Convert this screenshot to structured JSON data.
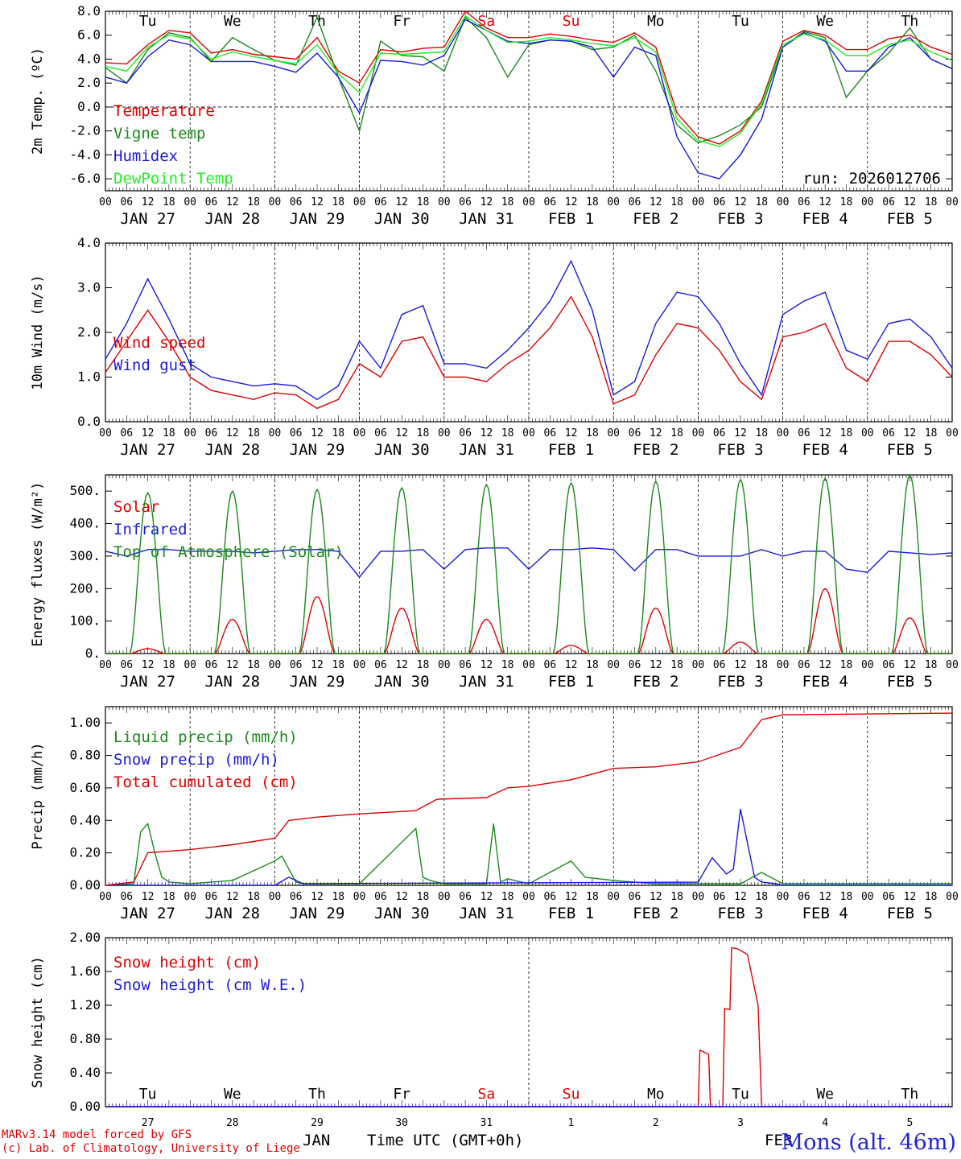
{
  "run_label": "run: 2026012706",
  "footer": {
    "line1": "MARv3.14 model forced by GFS",
    "line2": "(c) Lab. of Climatology, University of Liege"
  },
  "station": "Mons (alt. 46m)",
  "x_axis": {
    "month_label": "JAN",
    "month_label2": "FEB",
    "title": "Time UTC (GMT+0h)",
    "hour_ticks": [
      "00",
      "06",
      "12",
      "18"
    ],
    "dates": [
      "JAN 27",
      "JAN 28",
      "JAN 29",
      "JAN 30",
      "JAN 31",
      "FEB  1",
      "FEB  2",
      "FEB  3",
      "FEB  4",
      "FEB  5"
    ],
    "day_numbers": [
      "27",
      "28",
      "29",
      "30",
      "31",
      "1",
      "2",
      "3",
      "4",
      "5"
    ],
    "days": [
      {
        "label": "Tu",
        "color": "#000000"
      },
      {
        "label": "We",
        "color": "#000000"
      },
      {
        "label": "Th",
        "color": "#000000"
      },
      {
        "label": "Fr",
        "color": "#000000"
      },
      {
        "label": "Sa",
        "color": "#e00000"
      },
      {
        "label": "Su",
        "color": "#e00000"
      },
      {
        "label": "Mo",
        "color": "#000000"
      },
      {
        "label": "Tu",
        "color": "#000000"
      },
      {
        "label": "We",
        "color": "#000000"
      },
      {
        "label": "Th",
        "color": "#000000"
      }
    ]
  },
  "chart_data": [
    {
      "type": "line",
      "ylabel": "2m Temp. (ºC)",
      "ylim": [
        -7,
        8
      ],
      "yticks": [
        -6,
        -4,
        -2,
        0,
        2,
        4,
        6,
        8
      ],
      "ytick_labels": [
        "-6.0",
        "-4.0",
        "-2.0",
        "0.0",
        "2.0",
        "4.0",
        "6.0",
        "8.0"
      ],
      "zero_line": true,
      "legend_placement": "top-left",
      "x_hours": [
        0,
        6,
        12,
        18,
        24,
        30,
        36,
        42,
        48,
        54,
        60,
        66,
        72,
        78,
        84,
        90,
        96,
        102,
        108,
        114,
        120,
        126,
        132,
        138,
        144,
        150,
        156,
        162,
        168,
        174,
        180,
        186,
        192,
        198,
        204,
        210,
        216,
        222,
        228,
        234,
        240
      ],
      "series": [
        {
          "name": "Temperature",
          "color": "#e00000",
          "values": [
            3.7,
            3.6,
            5.2,
            6.4,
            6.2,
            4.5,
            4.8,
            4.4,
            4.2,
            4.0,
            5.8,
            3.0,
            2.0,
            4.8,
            4.6,
            4.9,
            5.0,
            8.0,
            6.6,
            5.8,
            5.8,
            6.1,
            5.9,
            5.6,
            5.4,
            6.2,
            5.0,
            -0.5,
            -2.5,
            -3.1,
            -2.0,
            0.5,
            5.5,
            6.4,
            6.0,
            4.8,
            4.8,
            5.7,
            6.0,
            5.0,
            4.4
          ]
        },
        {
          "name": "Vigne temp",
          "color": "#1a8a1a",
          "values": [
            3.3,
            2.0,
            4.8,
            6.2,
            5.8,
            3.8,
            5.8,
            4.8,
            3.9,
            3.5,
            7.5,
            2.5,
            -2.0,
            5.5,
            4.3,
            4.2,
            3.0,
            7.5,
            5.8,
            2.5,
            5.2,
            5.6,
            5.5,
            4.8,
            5.0,
            6.0,
            3.0,
            -1.5,
            -3.0,
            -2.4,
            -1.5,
            0.0,
            5.0,
            6.3,
            5.8,
            0.8,
            3.0,
            4.5,
            6.6,
            4.0,
            3.2
          ]
        },
        {
          "name": "Humidex",
          "color": "#1a1ae0",
          "values": [
            2.5,
            2.0,
            4.2,
            5.6,
            5.2,
            3.8,
            3.8,
            3.8,
            3.4,
            2.9,
            4.5,
            2.5,
            -0.5,
            3.9,
            3.8,
            3.5,
            4.3,
            7.3,
            6.4,
            5.5,
            5.3,
            5.6,
            5.5,
            5.0,
            2.5,
            5.0,
            4.3,
            -2.5,
            -5.5,
            -6.0,
            -4.0,
            -1.0,
            5.0,
            6.2,
            5.5,
            3.0,
            3.0,
            5.0,
            5.8,
            4.0,
            3.2
          ]
        },
        {
          "name": "DewPoint Temp",
          "color": "#22ee22",
          "values": [
            3.4,
            3.0,
            5.0,
            6.0,
            5.7,
            4.0,
            4.6,
            4.2,
            3.9,
            3.6,
            5.2,
            2.8,
            1.2,
            4.5,
            4.4,
            4.5,
            4.6,
            7.6,
            6.4,
            5.4,
            5.5,
            5.8,
            5.6,
            5.3,
            5.1,
            5.8,
            4.6,
            -1.0,
            -2.8,
            -3.3,
            -2.2,
            0.3,
            5.2,
            6.1,
            5.6,
            4.3,
            4.3,
            5.2,
            5.6,
            4.6,
            3.9
          ]
        }
      ]
    },
    {
      "type": "line",
      "ylabel": "10m Wind (m/s)",
      "ylim": [
        0,
        4
      ],
      "yticks": [
        0,
        1,
        2,
        3,
        4
      ],
      "ytick_labels": [
        "0.0",
        "1.0",
        "2.0",
        "3.0",
        "4.0"
      ],
      "legend_placement": "top-left",
      "x_hours": [
        0,
        6,
        12,
        18,
        24,
        30,
        36,
        42,
        48,
        54,
        60,
        66,
        72,
        78,
        84,
        90,
        96,
        102,
        108,
        114,
        120,
        126,
        132,
        138,
        144,
        150,
        156,
        162,
        168,
        174,
        180,
        186,
        192,
        198,
        204,
        210,
        216,
        222,
        228,
        234,
        240
      ],
      "series": [
        {
          "name": "Wind speed",
          "color": "#e00000",
          "values": [
            1.1,
            1.8,
            2.5,
            1.8,
            1.0,
            0.7,
            0.6,
            0.5,
            0.65,
            0.6,
            0.3,
            0.5,
            1.3,
            1.0,
            1.8,
            1.9,
            1.0,
            1.0,
            0.9,
            1.3,
            1.6,
            2.1,
            2.8,
            1.9,
            0.4,
            0.6,
            1.5,
            2.2,
            2.1,
            1.6,
            0.9,
            0.5,
            1.9,
            2.0,
            2.2,
            1.2,
            0.9,
            1.8,
            1.8,
            1.5,
            1.0
          ]
        },
        {
          "name": "Wind gust",
          "color": "#1a1ae0",
          "values": [
            1.4,
            2.2,
            3.2,
            2.3,
            1.3,
            1.0,
            0.9,
            0.8,
            0.85,
            0.8,
            0.5,
            0.8,
            1.8,
            1.2,
            2.4,
            2.6,
            1.3,
            1.3,
            1.2,
            1.6,
            2.1,
            2.7,
            3.6,
            2.5,
            0.6,
            0.9,
            2.2,
            2.9,
            2.8,
            2.2,
            1.3,
            0.6,
            2.4,
            2.7,
            2.9,
            1.6,
            1.4,
            2.2,
            2.3,
            1.9,
            1.2
          ]
        }
      ]
    },
    {
      "type": "line",
      "ylabel": "Energy fluxes (W/m²)",
      "ylim": [
        0,
        550
      ],
      "yticks": [
        0,
        100,
        200,
        300,
        400,
        500
      ],
      "ytick_labels": [
        "0.",
        "100.",
        "200.",
        "300.",
        "400.",
        "500."
      ],
      "legend_placement": "top-left",
      "series": [
        {
          "name": "Solar",
          "color": "#e00000",
          "peaks": [
            15,
            105,
            175,
            140,
            105,
            25,
            140,
            35,
            200,
            110
          ]
        },
        {
          "name": "Infrared",
          "color": "#1a1ae0",
          "x_hours": [
            0,
            6,
            12,
            18,
            24,
            30,
            36,
            42,
            48,
            54,
            60,
            66,
            72,
            78,
            84,
            90,
            96,
            102,
            108,
            114,
            120,
            126,
            132,
            138,
            144,
            150,
            156,
            162,
            168,
            174,
            180,
            186,
            192,
            198,
            204,
            210,
            216,
            222,
            228,
            234,
            240
          ],
          "values": [
            315,
            300,
            320,
            320,
            315,
            315,
            315,
            310,
            315,
            320,
            320,
            315,
            235,
            315,
            315,
            320,
            260,
            320,
            325,
            325,
            260,
            320,
            320,
            325,
            320,
            255,
            320,
            320,
            300,
            300,
            300,
            320,
            300,
            315,
            315,
            260,
            250,
            315,
            310,
            305,
            310
          ]
        },
        {
          "name": "Top of Atmosphere (Solar)",
          "color": "#1a8a1a",
          "peaks": [
            495,
            500,
            505,
            510,
            520,
            525,
            530,
            535,
            540,
            550
          ]
        }
      ]
    },
    {
      "type": "line",
      "ylabel": "Precip (mm/h)",
      "ylim": [
        0,
        1.1
      ],
      "yticks": [
        0,
        0.2,
        0.4,
        0.6,
        0.8,
        1.0
      ],
      "ytick_labels": [
        "0.00",
        "0.20",
        "0.40",
        "0.60",
        "0.80",
        "1.00"
      ],
      "legend_placement": "top-left",
      "series": [
        {
          "name": "Liquid precip (mm/h)",
          "color": "#1a8a1a",
          "x_hours": [
            0,
            8,
            10,
            12,
            14,
            16,
            18,
            24,
            36,
            48,
            50,
            52,
            54,
            56,
            60,
            72,
            88,
            90,
            92,
            96,
            108,
            110,
            112,
            114,
            120,
            132,
            136,
            144,
            156,
            180,
            186,
            192,
            240
          ],
          "values": [
            0,
            0.01,
            0.33,
            0.38,
            0.2,
            0.05,
            0.02,
            0.01,
            0.03,
            0.15,
            0.18,
            0.1,
            0.02,
            0.01,
            0.01,
            0.01,
            0.35,
            0.05,
            0.03,
            0.01,
            0.01,
            0.38,
            0.02,
            0.04,
            0.01,
            0.15,
            0.05,
            0.03,
            0.01,
            0.01,
            0.08,
            0.01,
            0.01
          ]
        },
        {
          "name": "Snow precip (mm/h)",
          "color": "#1a1ae0",
          "x_hours": [
            0,
            48,
            52,
            56,
            168,
            172,
            176,
            178,
            180,
            184,
            186,
            190,
            192,
            240
          ],
          "values": [
            0,
            0,
            0.05,
            0.01,
            0.02,
            0.17,
            0.07,
            0.1,
            0.47,
            0.05,
            0.02,
            0.01,
            0.0,
            0
          ]
        },
        {
          "name": "Total cumulated (cm)",
          "color": "#e00000",
          "x_hours": [
            0,
            8,
            12,
            24,
            36,
            48,
            52,
            60,
            72,
            88,
            94,
            108,
            114,
            120,
            132,
            144,
            156,
            168,
            176,
            180,
            186,
            192,
            240
          ],
          "values": [
            0,
            0.02,
            0.2,
            0.22,
            0.25,
            0.29,
            0.4,
            0.42,
            0.44,
            0.46,
            0.53,
            0.54,
            0.6,
            0.61,
            0.65,
            0.72,
            0.73,
            0.76,
            0.82,
            0.85,
            1.02,
            1.05,
            1.06
          ]
        }
      ]
    },
    {
      "type": "line",
      "ylabel": "Snow height (cm)",
      "ylim": [
        0,
        2
      ],
      "yticks": [
        0,
        0.4,
        0.8,
        1.2,
        1.6,
        2.0
      ],
      "ytick_labels": [
        "0.00",
        "0.40",
        "0.80",
        "1.20",
        "1.60",
        "2.00"
      ],
      "legend_placement": "top-left",
      "series": [
        {
          "name": "Snow height (cm)",
          "color": "#e00000",
          "x_hours": [
            0,
            168,
            168.5,
            171,
            171.5,
            175,
            175.5,
            177,
            177.5,
            179,
            179.5,
            182,
            183,
            185,
            186,
            186.5,
            240
          ],
          "values": [
            0,
            0,
            0.67,
            0.62,
            0,
            0,
            1.16,
            1.15,
            1.88,
            1.87,
            1.86,
            1.8,
            1.6,
            1.2,
            0.0,
            0,
            0
          ]
        },
        {
          "name": "Snow height (cm W.E.)",
          "color": "#1a1ae0",
          "x_hours": [
            0,
            240
          ],
          "values": [
            0,
            0
          ]
        }
      ]
    }
  ]
}
